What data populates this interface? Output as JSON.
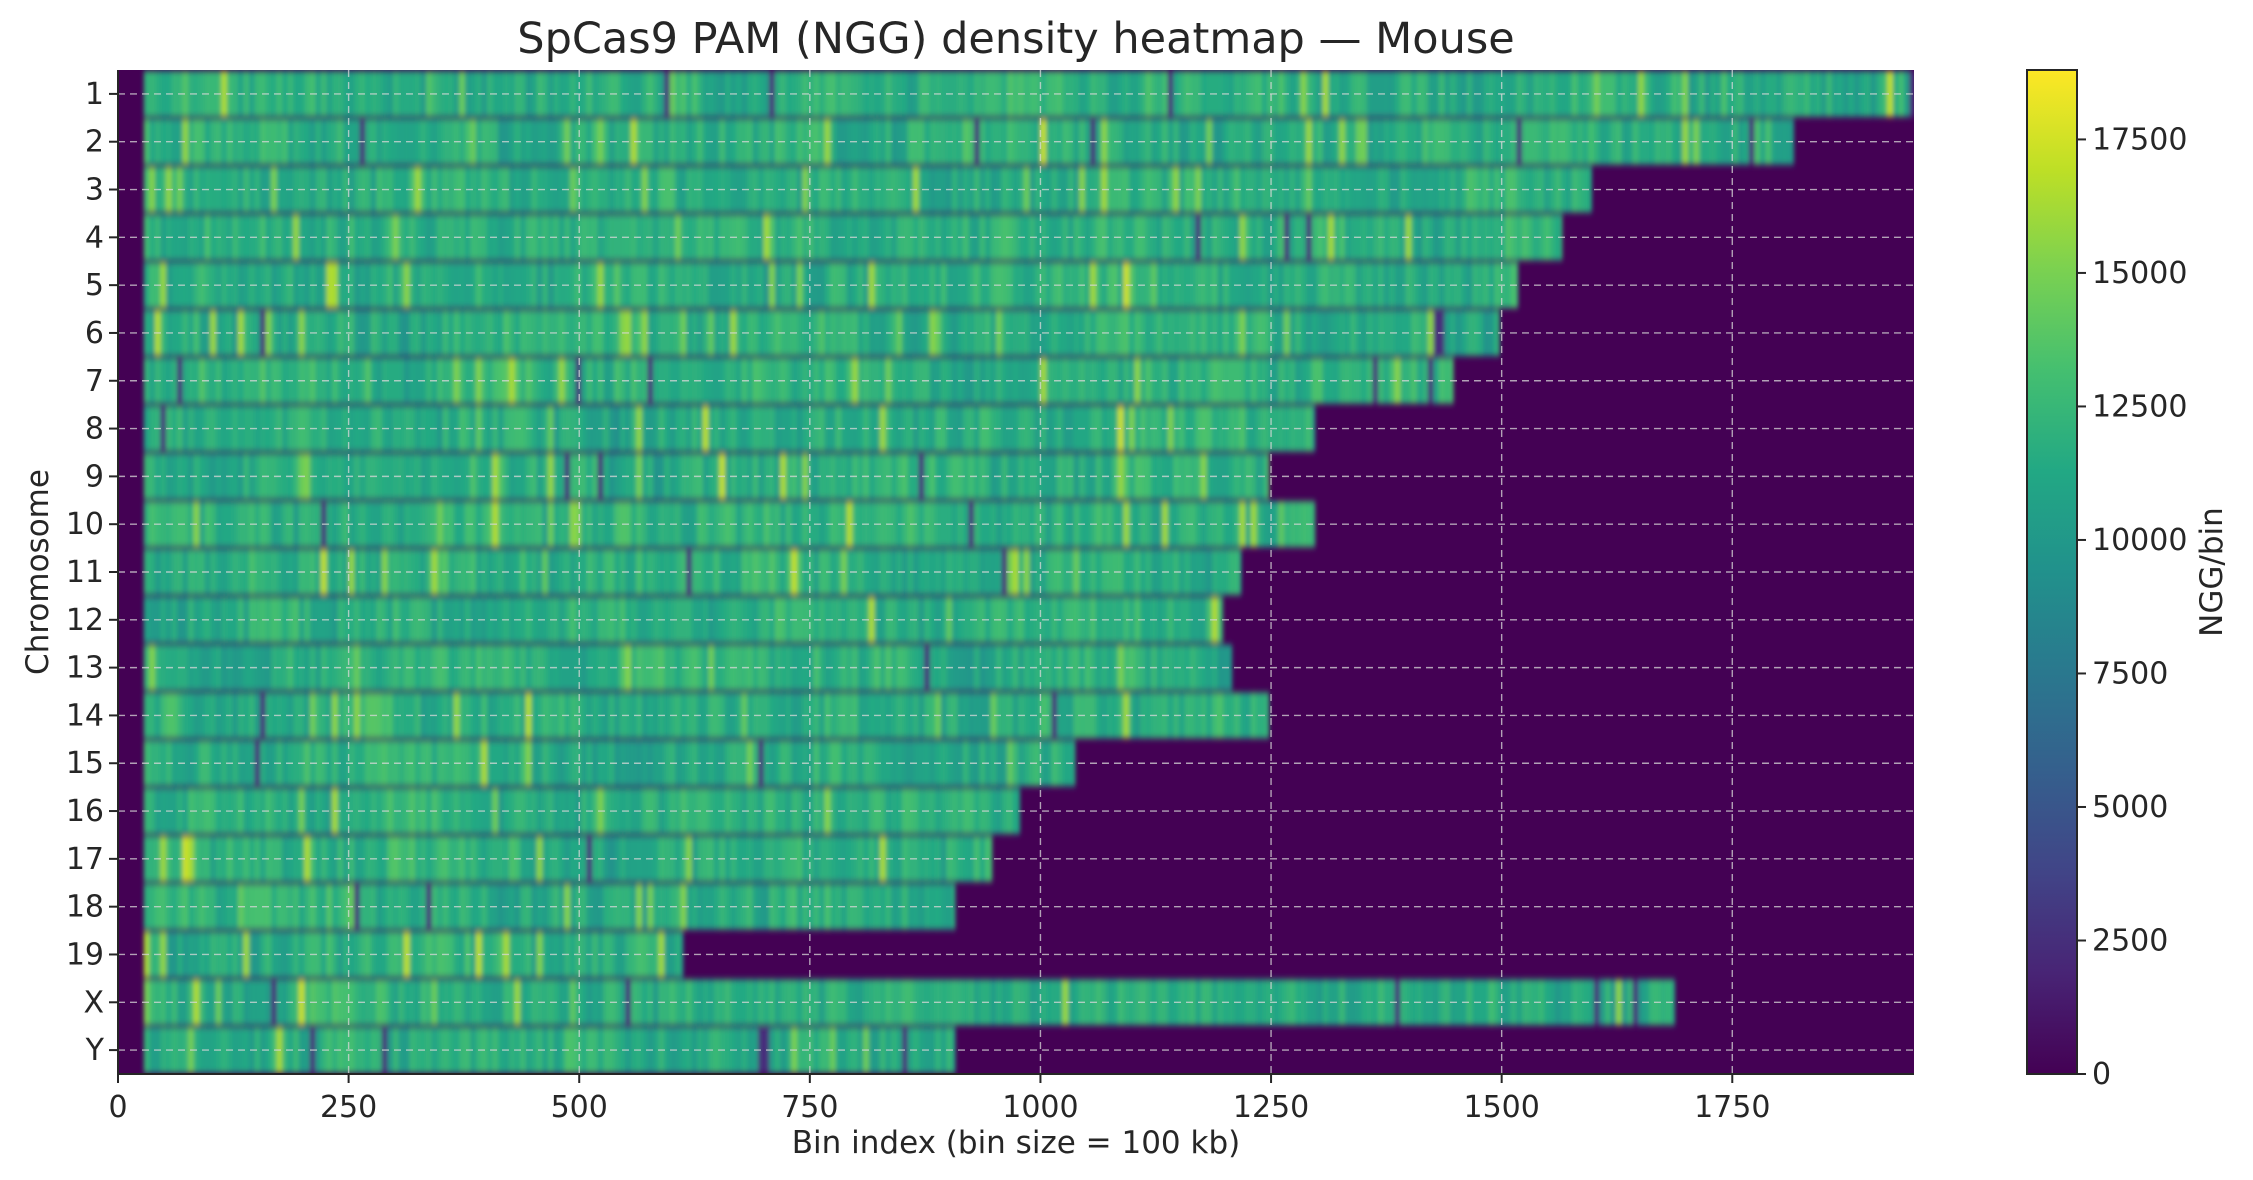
{
  "chart_data": {
    "type": "heatmap",
    "title": "SpCas9 PAM (NGG) density heatmap — Mouse",
    "xlabel": "Bin index (bin size = 100 kb)",
    "ylabel": "Chromosome",
    "colorbar_label": "NGG/bin",
    "colormap": "viridis",
    "xlim": [
      0,
      1947
    ],
    "x_ticks": [
      0,
      250,
      500,
      750,
      1000,
      1250,
      1500,
      1750
    ],
    "colorbar_range": [
      0,
      18800
    ],
    "colorbar_ticks": [
      0,
      2500,
      5000,
      7500,
      10000,
      12500,
      15000,
      17500
    ],
    "grid": true,
    "rows": [
      {
        "chromosome": "1",
        "n_bins": 1947
      },
      {
        "chromosome": "2",
        "n_bins": 1816
      },
      {
        "chromosome": "3",
        "n_bins": 1597
      },
      {
        "chromosome": "4",
        "n_bins": 1565
      },
      {
        "chromosome": "5",
        "n_bins": 1517
      },
      {
        "chromosome": "6",
        "n_bins": 1497
      },
      {
        "chromosome": "7",
        "n_bins": 1447
      },
      {
        "chromosome": "8",
        "n_bins": 1297
      },
      {
        "chromosome": "9",
        "n_bins": 1247
      },
      {
        "chromosome": "10",
        "n_bins": 1297
      },
      {
        "chromosome": "11",
        "n_bins": 1217
      },
      {
        "chromosome": "12",
        "n_bins": 1197
      },
      {
        "chromosome": "13",
        "n_bins": 1207
      },
      {
        "chromosome": "14",
        "n_bins": 1247
      },
      {
        "chromosome": "15",
        "n_bins": 1037
      },
      {
        "chromosome": "16",
        "n_bins": 977
      },
      {
        "chromosome": "17",
        "n_bins": 947
      },
      {
        "chromosome": "18",
        "n_bins": 907
      },
      {
        "chromosome": "19",
        "n_bins": 612
      },
      {
        "chromosome": "X",
        "n_bins": 1687
      },
      {
        "chromosome": "Y",
        "n_bins": 907
      }
    ],
    "leading_gap_bins": 28,
    "typical_density_range": [
      8000,
      14000
    ],
    "background_value": 0
  }
}
